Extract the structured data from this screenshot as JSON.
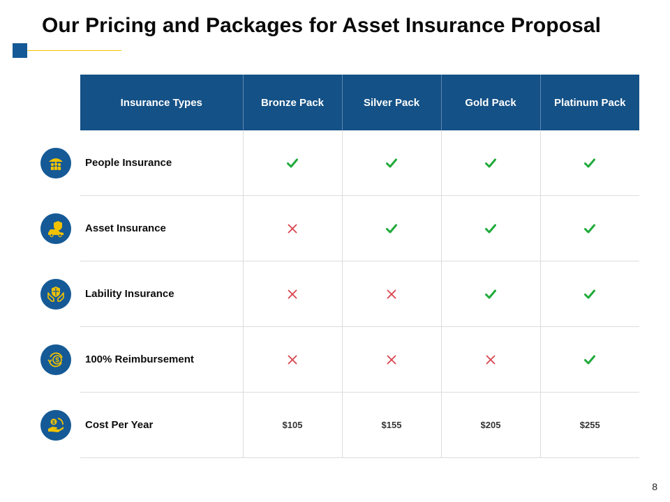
{
  "slide": {
    "title": "Our Pricing and Packages for Asset Insurance Proposal",
    "page_number": "8"
  },
  "table": {
    "headers": [
      "Insurance Types",
      "Bronze Pack",
      "Silver Pack",
      "Gold Pack",
      "Platinum Pack"
    ],
    "rows": [
      {
        "label": "People Insurance",
        "icon": "people-umbrella-icon",
        "values": [
          "check",
          "check",
          "check",
          "check"
        ]
      },
      {
        "label": "Asset Insurance",
        "icon": "car-shield-icon",
        "values": [
          "cross",
          "check",
          "check",
          "check"
        ]
      },
      {
        "label": "Lability Insurance",
        "icon": "hands-shield-icon",
        "values": [
          "cross",
          "cross",
          "check",
          "check"
        ]
      },
      {
        "label": "100% Reimbursement",
        "icon": "dollar-refresh-icon",
        "values": [
          "cross",
          "cross",
          "cross",
          "check"
        ]
      },
      {
        "label": "Cost Per Year",
        "icon": "hand-coin-icon",
        "values": [
          "$105",
          "$155",
          "$205",
          "$255"
        ]
      }
    ]
  },
  "colors": {
    "header_bg": "#145186",
    "icon_bg": "#155a96",
    "icon_fg": "#f2c200",
    "check": "#1faa3a",
    "cross": "#d9434e",
    "accent_line": "#f2c200"
  }
}
